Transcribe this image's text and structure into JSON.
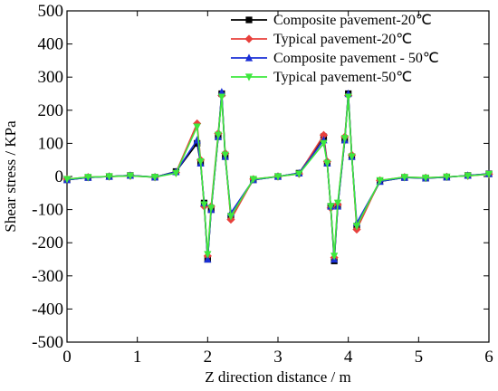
{
  "chart_data": {
    "type": "line",
    "xlabel": "Z direction distance / m",
    "ylabel": "Shear stress / KPa",
    "xlim": [
      0,
      6
    ],
    "ylim": [
      -500,
      500
    ],
    "xticks": [
      0,
      1,
      2,
      3,
      4,
      5,
      6
    ],
    "yticks": [
      -500,
      -400,
      -300,
      -200,
      -100,
      0,
      100,
      200,
      300,
      400,
      500
    ],
    "grid": false,
    "legend_position": "top-right",
    "series": [
      {
        "name": "Composite pavement-20℃",
        "color": "#000000",
        "marker": "square",
        "x": [
          0,
          0.3,
          0.6,
          0.9,
          1.25,
          1.55,
          1.85,
          1.9,
          1.95,
          2.0,
          2.05,
          2.15,
          2.2,
          2.25,
          2.33,
          2.65,
          3.0,
          3.3,
          3.65,
          3.7,
          3.75,
          3.8,
          3.85,
          3.95,
          4.0,
          4.05,
          4.12,
          4.45,
          4.8,
          5.1,
          5.4,
          5.7,
          6.0
        ],
        "y": [
          -10,
          -3,
          0,
          3,
          -2,
          15,
          100,
          40,
          -80,
          -250,
          -100,
          120,
          250,
          60,
          -120,
          -10,
          0,
          10,
          120,
          40,
          -90,
          -255,
          -90,
          110,
          250,
          60,
          -150,
          -15,
          -3,
          -5,
          -2,
          3,
          8
        ]
      },
      {
        "name": "Typical pavement-20℃",
        "color": "#e8403c",
        "marker": "diamond",
        "x": [
          0,
          0.3,
          0.6,
          0.9,
          1.25,
          1.55,
          1.85,
          1.9,
          1.95,
          2.0,
          2.05,
          2.15,
          2.2,
          2.25,
          2.33,
          2.65,
          3.0,
          3.3,
          3.65,
          3.7,
          3.75,
          3.8,
          3.85,
          3.95,
          4.0,
          4.05,
          4.12,
          4.45,
          4.8,
          5.1,
          5.4,
          5.7,
          6.0
        ],
        "y": [
          -8,
          -2,
          0,
          2,
          -2,
          12,
          160,
          50,
          -90,
          -240,
          -90,
          130,
          245,
          70,
          -130,
          -8,
          0,
          8,
          125,
          45,
          -95,
          -245,
          -85,
          120,
          245,
          65,
          -160,
          -12,
          -2,
          -4,
          -1,
          2,
          7
        ]
      },
      {
        "name": "Composite pavement - 50℃",
        "color": "#1a2fd6",
        "marker": "triangle-up",
        "x": [
          0,
          0.3,
          0.6,
          0.9,
          1.25,
          1.55,
          1.85,
          1.9,
          1.95,
          2.0,
          2.05,
          2.15,
          2.2,
          2.25,
          2.33,
          2.65,
          3.0,
          3.3,
          3.65,
          3.7,
          3.75,
          3.8,
          3.85,
          3.95,
          4.0,
          4.05,
          4.12,
          4.45,
          4.8,
          5.1,
          5.4,
          5.7,
          6.0
        ],
        "y": [
          -10,
          -3,
          0,
          3,
          -2,
          14,
          110,
          40,
          -80,
          -250,
          -100,
          120,
          255,
          60,
          -110,
          -10,
          0,
          10,
          110,
          40,
          -90,
          -250,
          -90,
          110,
          250,
          60,
          -140,
          -15,
          -3,
          -5,
          -2,
          3,
          8
        ]
      },
      {
        "name": "Typical pavement-50℃",
        "color": "#3de83d",
        "marker": "triangle-down",
        "x": [
          0,
          0.3,
          0.6,
          0.9,
          1.25,
          1.55,
          1.85,
          1.9,
          1.95,
          2.0,
          2.05,
          2.15,
          2.2,
          2.25,
          2.33,
          2.65,
          3.0,
          3.3,
          3.65,
          3.7,
          3.75,
          3.8,
          3.85,
          3.95,
          4.0,
          4.05,
          4.12,
          4.45,
          4.8,
          5.1,
          5.4,
          5.7,
          6.0
        ],
        "y": [
          -8,
          -2,
          0,
          2,
          -2,
          10,
          150,
          45,
          -85,
          -235,
          -95,
          125,
          240,
          65,
          -120,
          -8,
          0,
          8,
          100,
          40,
          -90,
          -240,
          -80,
          115,
          240,
          60,
          -150,
          -12,
          -2,
          -4,
          -1,
          2,
          7
        ]
      }
    ]
  }
}
